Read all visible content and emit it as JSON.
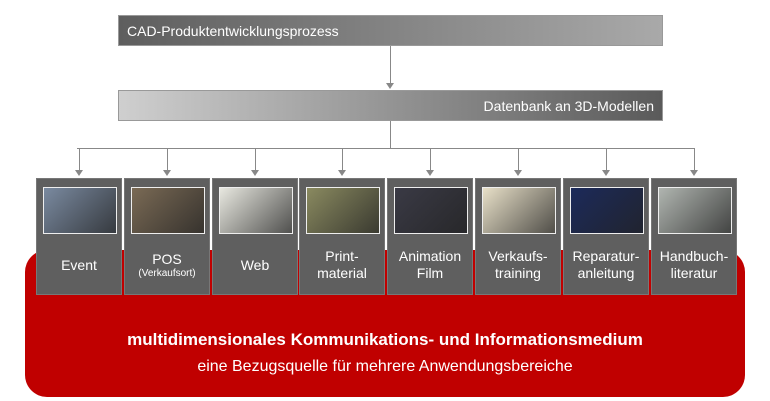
{
  "top_bar": "CAD-Produktentwicklungsprozess",
  "second_bar": "Datenbank an 3D-Modellen",
  "boxes": [
    {
      "line1": "Event",
      "line2": "",
      "thumb": "event-photo",
      "color": "#7a8aa0"
    },
    {
      "line1": "POS",
      "line2": "(Verkaufsort)",
      "thumb": "showroom-photo",
      "color": "#7a6a55"
    },
    {
      "line1": "Web",
      "line2": "",
      "thumb": "website-screenshot",
      "color": "#e8e8e0"
    },
    {
      "line1": "Print-",
      "line2": "material",
      "thumb": "car-on-road-photo",
      "color": "#8a8a60"
    },
    {
      "line1": "Animation",
      "line2": "Film",
      "thumb": "night-car-photo",
      "color": "#3a3a45"
    },
    {
      "line1": "Verkaufs-",
      "line2": "training",
      "thumb": "car-cutaway-image",
      "color": "#e8e0c8"
    },
    {
      "line1": "Reparatur-",
      "line2": "anleitung",
      "thumb": "blue-car-render",
      "color": "#1c2a5a"
    },
    {
      "line1": "Handbuch-",
      "line2": "literatur",
      "thumb": "manual-illustration",
      "color": "#b0b5b0"
    }
  ],
  "footer": {
    "title": "multidimensionales Kommunikations- und Informationsmedium",
    "subtitle": "eine Bezugsquelle für mehrere Anwendungsbereiche"
  },
  "colors": {
    "red": "#c00000",
    "box": "#5f5f5f"
  }
}
